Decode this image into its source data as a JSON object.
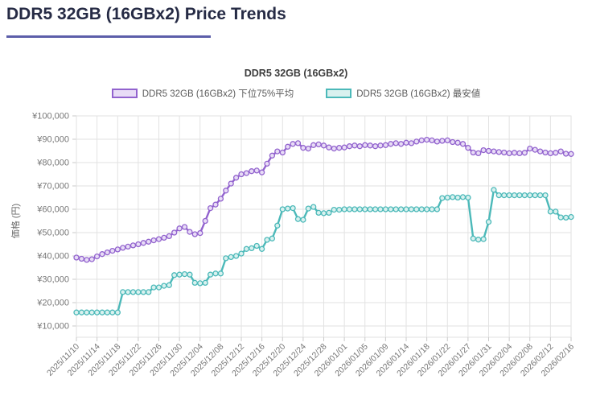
{
  "page": {
    "title": "DDR5 32GB (16GBx2) Price Trends"
  },
  "chart": {
    "title": "DDR5 32GB (16GBx2)",
    "y_axis_title": "価格 (円)"
  },
  "colors": {
    "header_title": "#262b45",
    "title_underline": "#5c5ea9",
    "grid": "#e2e2e2",
    "axis_text": "#767676",
    "series_avg75_stroke": "#9263ce",
    "series_avg75_marker_fill": "#e8dcf6",
    "series_min_stroke": "#4cb9b9",
    "series_min_marker_fill": "#d9f1ef"
  },
  "chart_data": {
    "type": "line",
    "title": "DDR5 32GB (16GBx2)",
    "xlabel": "",
    "ylabel": "価格 (円)",
    "ylim": [
      10000,
      100000
    ],
    "grid": true,
    "legend_position": "top",
    "x_tick_every": 4,
    "y_tick_labels": [
      "¥10,000",
      "¥20,000",
      "¥30,000",
      "¥40,000",
      "¥50,000",
      "¥60,000",
      "¥70,000",
      "¥80,000",
      "¥90,000",
      "¥100,000"
    ],
    "x": [
      "2025/11/10",
      "2025/11/11",
      "2025/11/12",
      "2025/11/13",
      "2025/11/14",
      "2025/11/15",
      "2025/11/16",
      "2025/11/17",
      "2025/11/18",
      "2025/11/19",
      "2025/11/20",
      "2025/11/21",
      "2025/11/22",
      "2025/11/23",
      "2025/11/24",
      "2025/11/25",
      "2025/11/26",
      "2025/11/27",
      "2025/11/28",
      "2025/11/29",
      "2025/11/30",
      "2025/12/01",
      "2025/12/02",
      "2025/12/03",
      "2025/12/04",
      "2025/12/05",
      "2025/12/06",
      "2025/12/07",
      "2025/12/08",
      "2025/12/09",
      "2025/12/10",
      "2025/12/11",
      "2025/12/12",
      "2025/12/13",
      "2025/12/14",
      "2025/12/15",
      "2025/12/16",
      "2025/12/17",
      "2025/12/18",
      "2025/12/19",
      "2025/12/20",
      "2025/12/21",
      "2025/12/22",
      "2025/12/23",
      "2025/12/24",
      "2025/12/25",
      "2025/12/26",
      "2025/12/27",
      "2025/12/28",
      "2025/12/29",
      "2025/12/30",
      "2025/12/31",
      "2026/01/01",
      "2026/01/02",
      "2026/01/03",
      "2026/01/04",
      "2026/01/05",
      "2026/01/06",
      "2026/01/07",
      "2026/01/08",
      "2026/01/09",
      "2026/01/10",
      "2026/01/11",
      "2026/01/12",
      "2026/01/14",
      "2026/01/15",
      "2026/01/16",
      "2026/01/17",
      "2026/01/18",
      "2026/01/19",
      "2026/01/20",
      "2026/01/21",
      "2026/01/22",
      "2026/01/23",
      "2026/01/24",
      "2026/01/25",
      "2026/01/27",
      "2026/01/28",
      "2026/01/29",
      "2026/01/30",
      "2026/01/31",
      "2026/02/01",
      "2026/02/02",
      "2026/02/03",
      "2026/02/04",
      "2026/02/05",
      "2026/02/06",
      "2026/02/07",
      "2026/02/08",
      "2026/02/09",
      "2026/02/10",
      "2026/02/11",
      "2026/02/12",
      "2026/02/13",
      "2026/02/14",
      "2026/02/15",
      "2026/02/16"
    ],
    "series": [
      {
        "name": "DDR5 32GB (16GBx2) 下位75%平均",
        "color": "#9263ce",
        "marker_fill": "#e8dcf6",
        "values": [
          39300,
          38800,
          38300,
          38600,
          39800,
          40800,
          41500,
          42200,
          42800,
          43500,
          44000,
          44500,
          45000,
          45600,
          46100,
          46700,
          47200,
          47800,
          48500,
          50000,
          51800,
          52400,
          50300,
          49300,
          49800,
          55000,
          60500,
          62000,
          64500,
          68000,
          71000,
          73500,
          75000,
          75500,
          76300,
          76600,
          75800,
          79500,
          83000,
          84800,
          84300,
          86800,
          88000,
          88300,
          86300,
          86000,
          87500,
          87800,
          87300,
          86500,
          86000,
          86300,
          86500,
          87000,
          87300,
          87000,
          87500,
          87300,
          87000,
          87300,
          87500,
          88000,
          88300,
          88000,
          88500,
          88300,
          89000,
          89500,
          89800,
          89500,
          89000,
          89300,
          89500,
          88800,
          88500,
          88000,
          86300,
          84300,
          84000,
          85300,
          85000,
          84800,
          84500,
          84300,
          84000,
          84200,
          84000,
          84200,
          86000,
          85500,
          84800,
          84300,
          84000,
          84200,
          84800,
          83800,
          83700
        ]
      },
      {
        "name": "DDR5 32GB (16GBx2) 最安値",
        "color": "#4cb9b9",
        "marker_fill": "#d9f1ef",
        "values": [
          15800,
          15800,
          15800,
          15800,
          15800,
          15800,
          15800,
          15800,
          15800,
          24500,
          24500,
          24500,
          24500,
          24500,
          24500,
          26500,
          26500,
          27200,
          27500,
          31800,
          32000,
          32200,
          32000,
          28500,
          28300,
          28500,
          32000,
          32500,
          32500,
          39000,
          39500,
          40000,
          41000,
          43000,
          43300,
          44300,
          43000,
          46900,
          47500,
          53000,
          60000,
          60300,
          60500,
          55800,
          55500,
          60300,
          61000,
          58500,
          58300,
          58500,
          59800,
          59800,
          60000,
          60000,
          60000,
          60000,
          60000,
          60000,
          60000,
          60000,
          60000,
          60000,
          60000,
          60000,
          60000,
          60000,
          60000,
          60000,
          60000,
          60000,
          60000,
          64800,
          65000,
          65200,
          65000,
          65200,
          65000,
          47500,
          47000,
          47200,
          54600,
          68300,
          66000,
          66000,
          66000,
          66000,
          66000,
          66000,
          66000,
          66000,
          66000,
          66000,
          59000,
          59000,
          56500,
          56400,
          56700
        ]
      }
    ]
  }
}
